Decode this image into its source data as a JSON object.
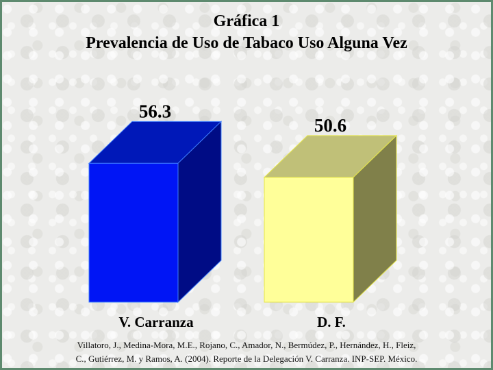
{
  "chart_data": {
    "type": "bar",
    "title": "Gráfica 1",
    "subtitle": "Prevalencia de Uso de Tabaco Uso Alguna Vez",
    "categories": [
      "V. Carranza",
      "D. F."
    ],
    "values": [
      56.3,
      50.6
    ],
    "value_labels": [
      "56.3",
      "50.6"
    ],
    "ylim": [
      0,
      60
    ],
    "grid": false,
    "legend": "none",
    "colors": {
      "bar1_front": "#0015f5",
      "bar1_top": "#0018b8",
      "bar1_side": "#000c85",
      "bar2_front": "#ffff99",
      "bar2_top": "#c0c078",
      "bar2_side": "#80804a"
    }
  },
  "citation": {
    "line1": "Villatoro, J., Medina-Mora, M.E., Rojano, C., Amador, N., Bermúdez, P., Hernández, H., Fleiz,",
    "line2": "C., Gutiérrez, M. y Ramos, A. (2004). Reporte de la Delegación V. Carranza. INP-SEP. México."
  }
}
